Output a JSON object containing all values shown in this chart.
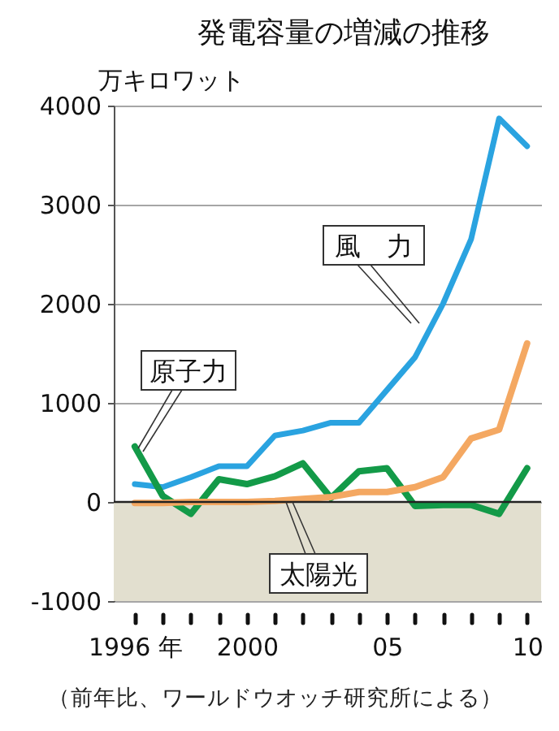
{
  "chart_data": {
    "type": "line",
    "title": "発電容量の増減の推移",
    "ylabel": "万キロワット",
    "x": [
      1996,
      1997,
      1998,
      1999,
      2000,
      2001,
      2002,
      2003,
      2004,
      2005,
      2006,
      2007,
      2008,
      2009,
      2010
    ],
    "series": [
      {
        "name": "風　力",
        "color": "#2aa3e0",
        "values": [
          180,
          150,
          250,
          360,
          360,
          670,
          720,
          800,
          800,
          1130,
          1460,
          2000,
          2650,
          3870,
          3590
        ]
      },
      {
        "name": "原子力",
        "color": "#139a48",
        "values": [
          560,
          60,
          -120,
          230,
          180,
          260,
          390,
          40,
          310,
          340,
          -40,
          -30,
          -30,
          -120,
          340
        ]
      },
      {
        "name": "太陽光",
        "color": "#f4a862",
        "values": [
          -10,
          -10,
          0,
          0,
          0,
          10,
          30,
          50,
          100,
          100,
          150,
          250,
          640,
          730,
          1600
        ]
      }
    ],
    "xlim": [
      1995.25,
      2010.5
    ],
    "xticks": [
      {
        "value": 1996,
        "label": "1996 年"
      },
      {
        "value": 1997,
        "label": null
      },
      {
        "value": 1998,
        "label": null
      },
      {
        "value": 1999,
        "label": null
      },
      {
        "value": 2000,
        "label": "2000"
      },
      {
        "value": 2001,
        "label": null
      },
      {
        "value": 2002,
        "label": null
      },
      {
        "value": 2003,
        "label": null
      },
      {
        "value": 2004,
        "label": null
      },
      {
        "value": 2005,
        "label": "05"
      },
      {
        "value": 2006,
        "label": null
      },
      {
        "value": 2007,
        "label": null
      },
      {
        "value": 2008,
        "label": null
      },
      {
        "value": 2009,
        "label": null
      },
      {
        "value": 2010,
        "label": "10"
      }
    ],
    "ylim": [
      -1000,
      4000
    ],
    "yticks": [
      -1000,
      0,
      1000,
      2000,
      3000,
      4000
    ],
    "grid": "y",
    "bands": [
      {
        "axis": "y",
        "from": -1000,
        "to": 0,
        "color": "#e2dfcf"
      }
    ],
    "ref_lines": [
      {
        "axis": "y",
        "value": 0,
        "color": "#222222"
      }
    ],
    "annotations": [
      "（前年比、ワールドウオッチ研究所による）"
    ]
  }
}
